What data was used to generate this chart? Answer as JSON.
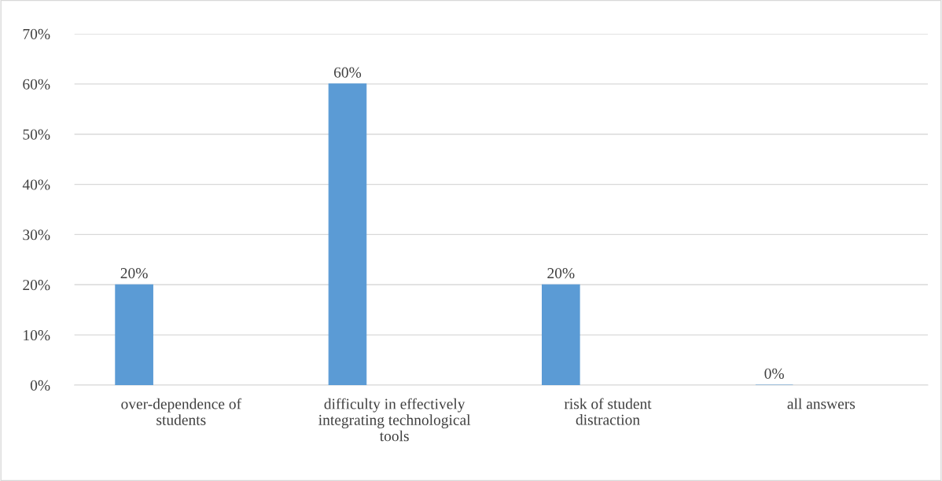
{
  "chart_data": {
    "type": "bar",
    "categories": [
      "over-dependence of students",
      "difficulty in effectively integrating technological tools",
      "risk of student distraction",
      "all answers"
    ],
    "values": [
      20,
      60,
      20,
      0
    ],
    "color": "#5b9bd5",
    "value_labels": [
      "20%",
      "60%",
      "20%",
      "0%"
    ],
    "ylim": [
      0,
      70
    ],
    "yticks": [
      {
        "value": 0,
        "label": "0%"
      },
      {
        "value": 10,
        "label": "10%"
      },
      {
        "value": 20,
        "label": "20%"
      },
      {
        "value": 30,
        "label": "30%"
      },
      {
        "value": 40,
        "label": "40%"
      },
      {
        "value": 50,
        "label": "50%"
      },
      {
        "value": 60,
        "label": "60%"
      },
      {
        "value": 70,
        "label": "70%"
      }
    ],
    "grid": "y"
  }
}
